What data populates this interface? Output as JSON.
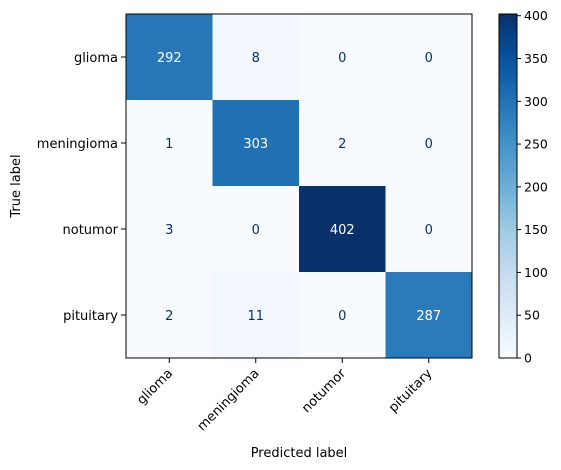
{
  "chart_data": {
    "type": "heatmap",
    "title": "",
    "xlabel": "Predicted label",
    "ylabel": "True label",
    "x_categories": [
      "glioma",
      "meningioma",
      "notumor",
      "pituitary"
    ],
    "y_categories": [
      "glioma",
      "meningioma",
      "notumor",
      "pituitary"
    ],
    "matrix": [
      [
        292,
        8,
        0,
        0
      ],
      [
        1,
        303,
        2,
        0
      ],
      [
        3,
        0,
        402,
        0
      ],
      [
        2,
        11,
        0,
        287
      ]
    ],
    "color_scale": {
      "name": "Blues",
      "min": 0,
      "max": 402,
      "low_color": "#f7fbff",
      "high_color": "#08306b"
    },
    "colorbar_ticks": [
      0,
      50,
      100,
      150,
      200,
      250,
      300,
      350,
      400
    ],
    "x_tick_rotation_deg": 45,
    "grid": false,
    "legend": "colorbar-right"
  }
}
